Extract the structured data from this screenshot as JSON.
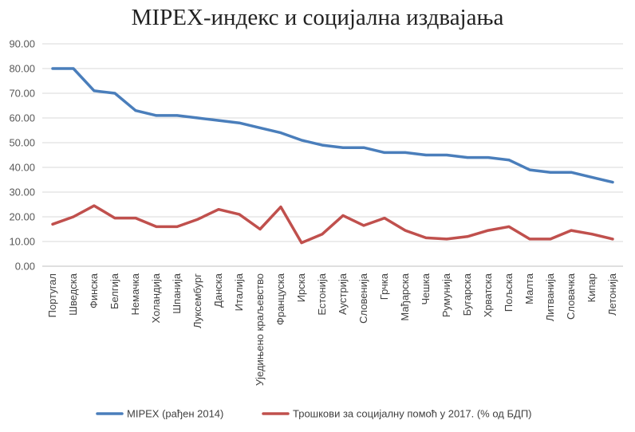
{
  "chart_data": {
    "type": "line",
    "title": "MIPEX-индекс и социјална издвајања",
    "xlabel": "",
    "ylabel": "",
    "ylim": [
      0,
      90
    ],
    "yticks": [
      "0.00",
      "10.00",
      "20.00",
      "30.00",
      "40.00",
      "50.00",
      "60.00",
      "70.00",
      "80.00",
      "90.00"
    ],
    "grid": true,
    "legend": "bottom",
    "categories": [
      "Португал",
      "Шведска",
      "Финска",
      "Белгија",
      "Немачка",
      "Холандија",
      "Шпанија",
      "Луксембург",
      "Данска",
      "Италија",
      "Уједињено краљевство",
      "Француска",
      "Ирска",
      "Естонија",
      "Аустрија",
      "Словенија",
      "Грчка",
      "Мађарска",
      "Чешка",
      "Румунија",
      "Бугарска",
      "Хрватска",
      "Пољска",
      "Малта",
      "Литванија",
      "Словачка",
      "Кипар",
      "Летонија"
    ],
    "series": [
      {
        "name": "MIPEX (рађен 2014)",
        "color": "#4a7ebb",
        "values": [
          80,
          80,
          71,
          70,
          63,
          61,
          61,
          60,
          59,
          58,
          56,
          54,
          51,
          49,
          48,
          48,
          46,
          46,
          45,
          45,
          44,
          44,
          43,
          39,
          38,
          38,
          36,
          34
        ]
      },
      {
        "name": "Трошкови за социјалну помоћ у 2017. (% од БДП)",
        "color": "#c0504d",
        "values": [
          17,
          20,
          24.5,
          19.5,
          19.5,
          16,
          16,
          19,
          23,
          21,
          15,
          24,
          9.5,
          13,
          20.5,
          16.5,
          19.5,
          14.5,
          11.5,
          11,
          12,
          14.5,
          16,
          11,
          11,
          14.5,
          13,
          11
        ]
      }
    ]
  }
}
